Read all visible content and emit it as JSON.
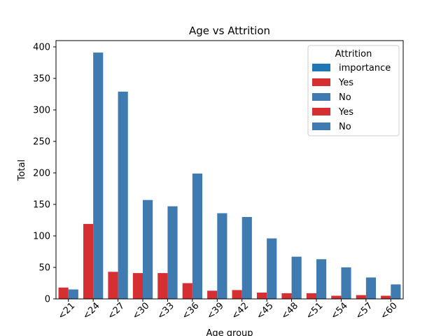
{
  "chart_data": {
    "type": "bar",
    "title": "Age vs Attrition",
    "xlabel": "Age group",
    "ylabel": "Total",
    "ylim": [
      0,
      410
    ],
    "yticks": [
      0,
      50,
      100,
      150,
      200,
      250,
      300,
      350,
      400
    ],
    "categories": [
      "<21",
      "<24",
      "<27",
      "<30",
      "<33",
      "<36",
      "<39",
      "<42",
      "<45",
      "<48",
      "<51",
      "<54",
      "<57",
      "<60"
    ],
    "series": [
      {
        "name": "Yes",
        "color": "#d62f32",
        "values": [
          18,
          119,
          43,
          41,
          41,
          25,
          13,
          14,
          10,
          9,
          9,
          5,
          6,
          5
        ]
      },
      {
        "name": "No",
        "color": "#3f7bb0",
        "values": [
          15,
          391,
          329,
          157,
          147,
          199,
          136,
          130,
          96,
          67,
          63,
          50,
          34,
          23
        ]
      }
    ],
    "legend": {
      "title": "Attrition",
      "position": "top-right",
      "entries": [
        {
          "label": "importance",
          "color": "#1f77b4"
        },
        {
          "label": "Yes",
          "color": "#d62f32"
        },
        {
          "label": "No",
          "color": "#3f7bb0"
        },
        {
          "label": "Yes",
          "color": "#d62f32"
        },
        {
          "label": "No",
          "color": "#3f7bb0"
        }
      ]
    },
    "grid": false
  }
}
